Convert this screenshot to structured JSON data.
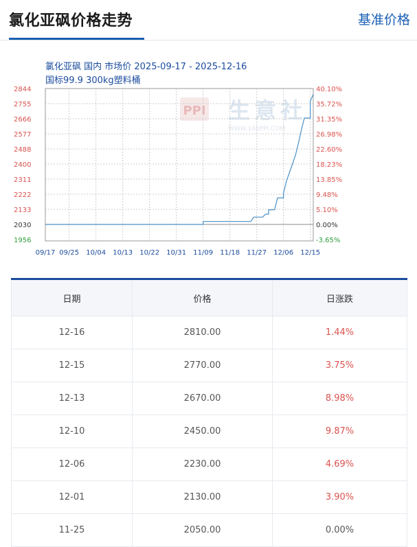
{
  "header": {
    "title": "氯化亚砜价格走势",
    "link": "基准价格"
  },
  "chart_data": {
    "type": "line",
    "title_line1": "氯化亚砜 国内 市场价 2025-09-17 - 2025-12-16",
    "title_line2": "国标99.9  300kg塑料桶",
    "watermark": {
      "text": "生意社",
      "sub": "WWW.100PPI.COM",
      "logo": "PPI"
    },
    "x_ticks": [
      "09/17",
      "09/25",
      "10/04",
      "10/13",
      "10/22",
      "10/31",
      "11/09",
      "11/18",
      "11/27",
      "12/06",
      "12/15"
    ],
    "y_left_ticks": [
      "2844",
      "2755",
      "2666",
      "2577",
      "2488",
      "2400",
      "2311",
      "2222",
      "2133",
      "2030",
      "1956"
    ],
    "y_right_ticks": [
      "40.10%",
      "35.72%",
      "31.35%",
      "26.98%",
      "22.60%",
      "18.23%",
      "13.85%",
      "9.48%",
      "5.10%",
      "0.00%",
      "-3.65%"
    ],
    "ylim": [
      1956,
      2844
    ],
    "baseline": 2030,
    "x_start": "09/17",
    "x_end": "12/16",
    "series": [
      {
        "points": [
          [
            "09/17",
            2030
          ],
          [
            "11/09",
            2030
          ],
          [
            "11/09",
            2050
          ],
          [
            "11/25",
            2050
          ],
          [
            "11/26",
            2080
          ],
          [
            "11/29",
            2080
          ],
          [
            "11/30",
            2100
          ],
          [
            "12/01",
            2100
          ],
          [
            "12/01",
            2130
          ],
          [
            "12/03",
            2130
          ],
          [
            "12/04",
            2200
          ],
          [
            "12/06",
            2200
          ],
          [
            "12/06",
            2230
          ],
          [
            "12/07",
            2300
          ],
          [
            "12/08",
            2350
          ],
          [
            "12/09",
            2400
          ],
          [
            "12/10",
            2450
          ],
          [
            "12/11",
            2520
          ],
          [
            "12/12",
            2600
          ],
          [
            "12/13",
            2670
          ],
          [
            "12/15",
            2670
          ],
          [
            "12/15",
            2770
          ],
          [
            "12/16",
            2810
          ]
        ]
      }
    ],
    "colors": {
      "line": "#4a90c8",
      "left_axis": "#d9534f",
      "right_axis": "#d9534f",
      "last_left": "#2e9e3e",
      "baseline_label": "#333333",
      "title": "#1a4b9c"
    }
  },
  "table": {
    "headers": [
      "日期",
      "价格",
      "日涨跌"
    ],
    "rows": [
      {
        "date": "12-16",
        "price": "2810.00",
        "change": "1.44%"
      },
      {
        "date": "12-15",
        "price": "2770.00",
        "change": "3.75%"
      },
      {
        "date": "12-13",
        "price": "2670.00",
        "change": "8.98%"
      },
      {
        "date": "12-10",
        "price": "2450.00",
        "change": "9.87%"
      },
      {
        "date": "12-06",
        "price": "2230.00",
        "change": "4.69%"
      },
      {
        "date": "12-01",
        "price": "2130.00",
        "change": "3.90%"
      },
      {
        "date": "11-25",
        "price": "2050.00",
        "change": "0.00%"
      }
    ]
  }
}
